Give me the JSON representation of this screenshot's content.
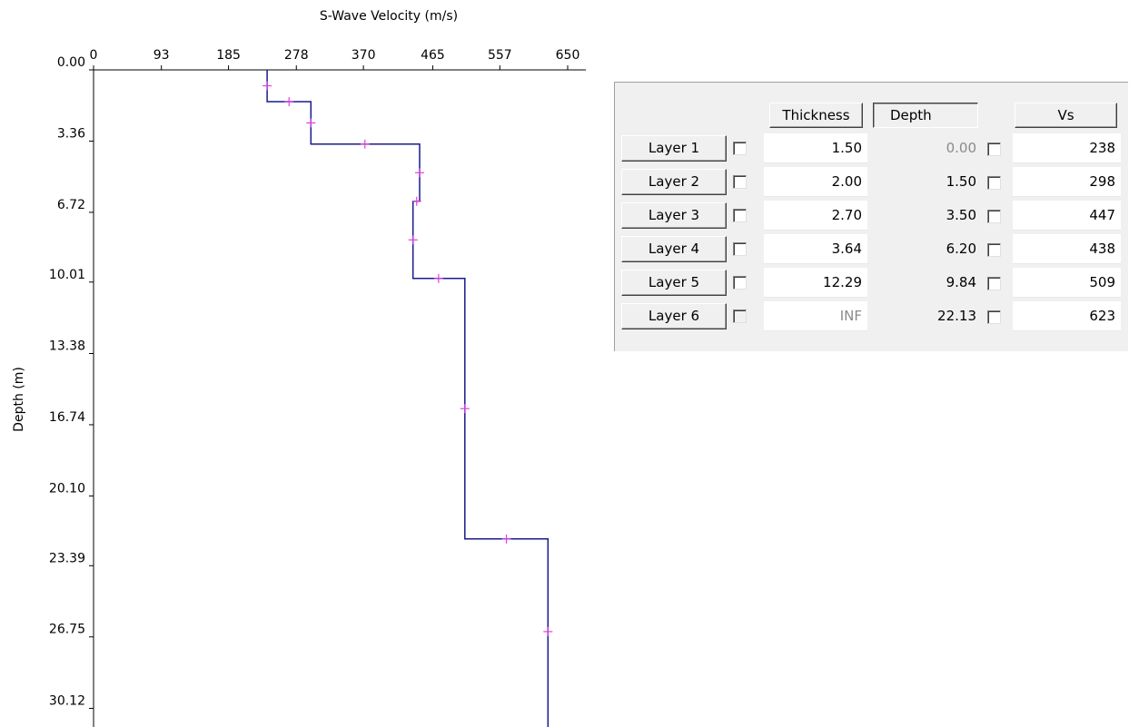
{
  "chart_data": {
    "type": "line",
    "title": "S-Wave Velocity (m/s)",
    "xlabel": "S-Wave Velocity (m/s)",
    "ylabel": "Depth (m)",
    "xlim": [
      0,
      650
    ],
    "ylim": [
      0,
      31.0
    ],
    "x_ticks": [
      "0",
      "93",
      "185",
      "278",
      "370",
      "465",
      "557",
      "650"
    ],
    "y_ticks": [
      "0.00",
      "3.36",
      "6.72",
      "10.01",
      "13.38",
      "16.74",
      "20.10",
      "23.39",
      "26.75",
      "30.12"
    ],
    "line_color": "#1a1a8c",
    "marker_color": "#e040e0",
    "series": [
      {
        "x": [
          238,
          238,
          298,
          298,
          447,
          447,
          438,
          438,
          509,
          509,
          623,
          623
        ],
        "y": [
          0,
          1.5,
          1.5,
          3.5,
          3.5,
          6.2,
          6.2,
          9.84,
          9.84,
          22.13,
          22.13,
          31.0
        ]
      }
    ],
    "markers": [
      {
        "x": 238,
        "y": 0.75
      },
      {
        "x": 268,
        "y": 1.5
      },
      {
        "x": 298,
        "y": 2.5
      },
      {
        "x": 372,
        "y": 3.5
      },
      {
        "x": 447,
        "y": 4.85
      },
      {
        "x": 443,
        "y": 6.2
      },
      {
        "x": 438,
        "y": 8.02
      },
      {
        "x": 473,
        "y": 9.84
      },
      {
        "x": 509,
        "y": 15.98
      },
      {
        "x": 566,
        "y": 22.13
      },
      {
        "x": 623,
        "y": 26.5
      }
    ]
  },
  "table": {
    "headers": {
      "thickness": "Thickness",
      "depth": "Depth",
      "vs": "Vs"
    },
    "rows": [
      {
        "label": "Layer 1",
        "thickness": "1.50",
        "depth": "0.00",
        "vs": "238"
      },
      {
        "label": "Layer 2",
        "thickness": "2.00",
        "depth": "1.50",
        "vs": "298"
      },
      {
        "label": "Layer 3",
        "thickness": "2.70",
        "depth": "3.50",
        "vs": "447"
      },
      {
        "label": "Layer 4",
        "thickness": "3.64",
        "depth": "6.20",
        "vs": "438"
      },
      {
        "label": "Layer 5",
        "thickness": "12.29",
        "depth": "9.84",
        "vs": "509"
      },
      {
        "label": "Layer 6",
        "thickness": "INF",
        "depth": "22.13",
        "vs": "623"
      }
    ]
  }
}
